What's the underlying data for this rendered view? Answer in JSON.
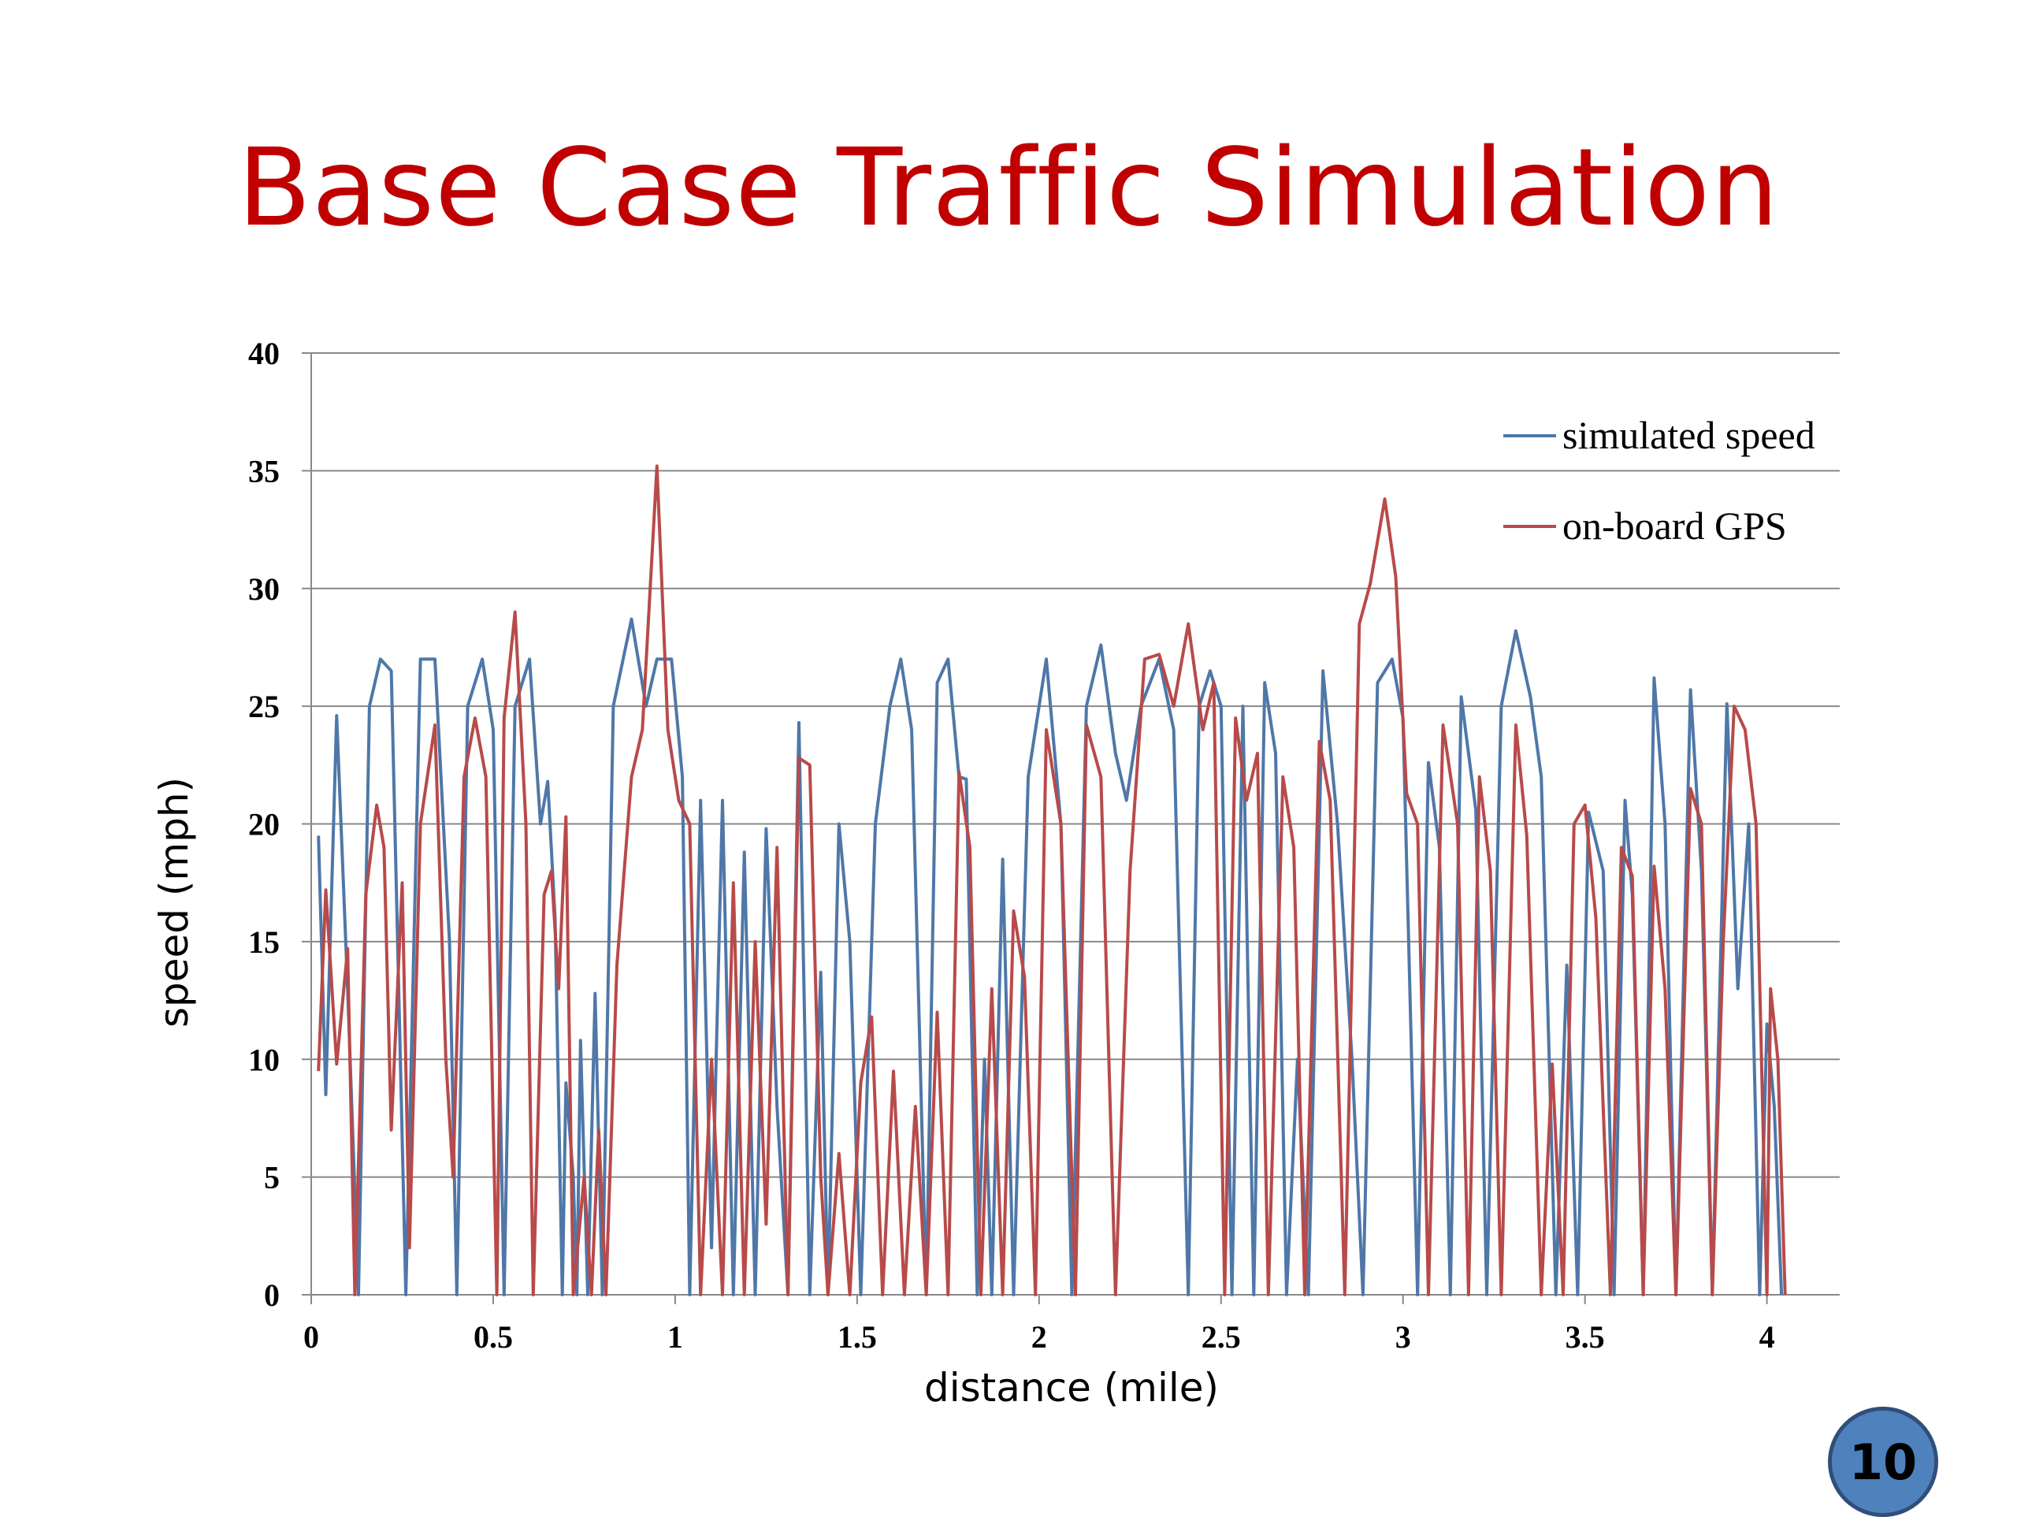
{
  "slide": {
    "title": "Base Case Traffic Simulation",
    "page_number": "10"
  },
  "colors": {
    "title": "#c00000",
    "simulated": "#4f77a8",
    "gps": "#b84a4a",
    "grid": "#888888",
    "badge": "#4f81bd"
  },
  "chart_data": {
    "type": "line",
    "xlabel": "distance (mile)",
    "ylabel": "speed (mph)",
    "xlim": [
      0,
      4.2
    ],
    "ylim": [
      0,
      40
    ],
    "x_ticks": [
      "0",
      "0.5",
      "1",
      "1.5",
      "2",
      "2.5",
      "3",
      "3.5",
      "4"
    ],
    "y_ticks": [
      "0",
      "5",
      "10",
      "15",
      "20",
      "25",
      "30",
      "35",
      "40"
    ],
    "grid": "horizontal",
    "legend_position": "top-right",
    "series": [
      {
        "name": "simulated speed",
        "color": "#4f77a8",
        "points": [
          [
            0.02,
            19.5
          ],
          [
            0.04,
            8.5
          ],
          [
            0.07,
            24.6
          ],
          [
            0.1,
            13
          ],
          [
            0.13,
            0
          ],
          [
            0.16,
            25
          ],
          [
            0.19,
            27
          ],
          [
            0.22,
            26.5
          ],
          [
            0.26,
            0
          ],
          [
            0.3,
            27
          ],
          [
            0.34,
            27
          ],
          [
            0.38,
            15
          ],
          [
            0.4,
            0
          ],
          [
            0.43,
            25
          ],
          [
            0.47,
            27
          ],
          [
            0.5,
            24
          ],
          [
            0.53,
            0
          ],
          [
            0.56,
            25
          ],
          [
            0.6,
            27
          ],
          [
            0.63,
            20
          ],
          [
            0.65,
            21.8
          ],
          [
            0.67,
            16
          ],
          [
            0.69,
            0
          ],
          [
            0.7,
            9
          ],
          [
            0.72,
            5
          ],
          [
            0.73,
            0
          ],
          [
            0.74,
            10.8
          ],
          [
            0.76,
            0
          ],
          [
            0.78,
            12.8
          ],
          [
            0.8,
            0
          ],
          [
            0.83,
            25
          ],
          [
            0.88,
            28.7
          ],
          [
            0.92,
            25
          ],
          [
            0.95,
            27
          ],
          [
            0.99,
            27
          ],
          [
            1.02,
            22
          ],
          [
            1.04,
            0
          ],
          [
            1.07,
            21
          ],
          [
            1.1,
            2
          ],
          [
            1.13,
            21
          ],
          [
            1.16,
            0
          ],
          [
            1.19,
            18.8
          ],
          [
            1.22,
            0
          ],
          [
            1.25,
            19.8
          ],
          [
            1.28,
            8
          ],
          [
            1.31,
            0
          ],
          [
            1.34,
            24.3
          ],
          [
            1.37,
            0
          ],
          [
            1.4,
            13.7
          ],
          [
            1.42,
            0
          ],
          [
            1.45,
            20
          ],
          [
            1.48,
            15
          ],
          [
            1.51,
            0
          ],
          [
            1.55,
            20
          ],
          [
            1.59,
            25
          ],
          [
            1.62,
            27
          ],
          [
            1.65,
            24
          ],
          [
            1.69,
            0
          ],
          [
            1.72,
            26
          ],
          [
            1.75,
            27
          ],
          [
            1.78,
            22
          ],
          [
            1.8,
            21.9
          ],
          [
            1.83,
            0
          ],
          [
            1.85,
            10
          ],
          [
            1.87,
            0
          ],
          [
            1.9,
            18.5
          ],
          [
            1.93,
            0
          ],
          [
            1.97,
            22
          ],
          [
            2.02,
            27
          ],
          [
            2.06,
            20
          ],
          [
            2.09,
            0
          ],
          [
            2.13,
            25
          ],
          [
            2.17,
            27.6
          ],
          [
            2.21,
            23
          ],
          [
            2.24,
            21
          ],
          [
            2.28,
            25
          ],
          [
            2.33,
            27
          ],
          [
            2.37,
            24
          ],
          [
            2.41,
            0
          ],
          [
            2.44,
            25
          ],
          [
            2.47,
            26.5
          ],
          [
            2.5,
            25
          ],
          [
            2.53,
            0
          ],
          [
            2.56,
            25
          ],
          [
            2.59,
            0
          ],
          [
            2.62,
            26
          ],
          [
            2.65,
            23
          ],
          [
            2.68,
            0
          ],
          [
            2.71,
            10
          ],
          [
            2.74,
            0
          ],
          [
            2.78,
            26.5
          ],
          [
            2.82,
            20
          ],
          [
            2.86,
            10
          ],
          [
            2.89,
            0
          ],
          [
            2.93,
            26
          ],
          [
            2.97,
            27
          ],
          [
            3.0,
            24.5
          ],
          [
            3.04,
            0
          ],
          [
            3.07,
            22.6
          ],
          [
            3.1,
            19
          ],
          [
            3.13,
            0
          ],
          [
            3.16,
            25.4
          ],
          [
            3.2,
            20.6
          ],
          [
            3.23,
            0
          ],
          [
            3.27,
            25
          ],
          [
            3.31,
            28.2
          ],
          [
            3.35,
            25.4
          ],
          [
            3.38,
            22
          ],
          [
            3.42,
            0
          ],
          [
            3.45,
            14
          ],
          [
            3.48,
            0
          ],
          [
            3.51,
            20.5
          ],
          [
            3.55,
            18
          ],
          [
            3.58,
            0
          ],
          [
            3.61,
            21
          ],
          [
            3.63,
            17
          ],
          [
            3.66,
            0
          ],
          [
            3.69,
            26.2
          ],
          [
            3.72,
            20
          ],
          [
            3.75,
            0
          ],
          [
            3.79,
            25.7
          ],
          [
            3.82,
            18
          ],
          [
            3.85,
            0
          ],
          [
            3.89,
            25.1
          ],
          [
            3.92,
            13
          ],
          [
            3.95,
            20
          ],
          [
            3.98,
            0
          ],
          [
            4.0,
            11.5
          ],
          [
            4.02,
            8
          ],
          [
            4.04,
            0
          ]
        ]
      },
      {
        "name": "on-board GPS",
        "color": "#b84a4a",
        "points": [
          [
            0.02,
            9.5
          ],
          [
            0.04,
            17.2
          ],
          [
            0.07,
            9.8
          ],
          [
            0.1,
            14.7
          ],
          [
            0.12,
            0
          ],
          [
            0.15,
            17
          ],
          [
            0.18,
            20.8
          ],
          [
            0.2,
            19
          ],
          [
            0.22,
            7
          ],
          [
            0.25,
            17.5
          ],
          [
            0.27,
            2
          ],
          [
            0.3,
            20
          ],
          [
            0.34,
            24.2
          ],
          [
            0.37,
            10
          ],
          [
            0.39,
            5
          ],
          [
            0.42,
            22
          ],
          [
            0.45,
            24.5
          ],
          [
            0.48,
            22
          ],
          [
            0.51,
            0
          ],
          [
            0.53,
            24.5
          ],
          [
            0.56,
            29
          ],
          [
            0.59,
            20
          ],
          [
            0.61,
            0
          ],
          [
            0.64,
            17
          ],
          [
            0.66,
            18
          ],
          [
            0.68,
            13
          ],
          [
            0.7,
            20.3
          ],
          [
            0.72,
            0
          ],
          [
            0.75,
            5
          ],
          [
            0.77,
            0
          ],
          [
            0.79,
            7
          ],
          [
            0.81,
            0
          ],
          [
            0.84,
            14
          ],
          [
            0.88,
            22
          ],
          [
            0.91,
            24
          ],
          [
            0.95,
            35.2
          ],
          [
            0.98,
            24
          ],
          [
            1.01,
            21
          ],
          [
            1.04,
            20
          ],
          [
            1.07,
            0
          ],
          [
            1.1,
            10
          ],
          [
            1.13,
            0
          ],
          [
            1.16,
            17.5
          ],
          [
            1.19,
            0
          ],
          [
            1.22,
            15
          ],
          [
            1.25,
            3
          ],
          [
            1.28,
            19
          ],
          [
            1.31,
            0
          ],
          [
            1.34,
            22.8
          ],
          [
            1.37,
            22.5
          ],
          [
            1.4,
            5
          ],
          [
            1.42,
            0
          ],
          [
            1.45,
            6
          ],
          [
            1.48,
            0
          ],
          [
            1.51,
            9
          ],
          [
            1.54,
            11.8
          ],
          [
            1.57,
            0
          ],
          [
            1.6,
            9.5
          ],
          [
            1.63,
            0
          ],
          [
            1.66,
            8
          ],
          [
            1.69,
            0
          ],
          [
            1.72,
            12
          ],
          [
            1.75,
            0
          ],
          [
            1.78,
            22.2
          ],
          [
            1.81,
            19
          ],
          [
            1.84,
            0
          ],
          [
            1.87,
            13
          ],
          [
            1.9,
            0
          ],
          [
            1.93,
            16.3
          ],
          [
            1.96,
            13.5
          ],
          [
            1.99,
            0
          ],
          [
            2.02,
            24
          ],
          [
            2.06,
            20
          ],
          [
            2.1,
            0
          ],
          [
            2.13,
            24.2
          ],
          [
            2.17,
            22
          ],
          [
            2.21,
            0
          ],
          [
            2.25,
            18
          ],
          [
            2.29,
            27
          ],
          [
            2.33,
            27.2
          ],
          [
            2.37,
            25
          ],
          [
            2.41,
            28.5
          ],
          [
            2.45,
            24
          ],
          [
            2.48,
            26
          ],
          [
            2.51,
            0
          ],
          [
            2.54,
            24.5
          ],
          [
            2.57,
            21
          ],
          [
            2.6,
            23
          ],
          [
            2.63,
            0
          ],
          [
            2.67,
            22
          ],
          [
            2.7,
            19
          ],
          [
            2.73,
            0
          ],
          [
            2.77,
            23.5
          ],
          [
            2.8,
            21
          ],
          [
            2.84,
            0
          ],
          [
            2.88,
            28.5
          ],
          [
            2.91,
            30.2
          ],
          [
            2.95,
            33.8
          ],
          [
            2.98,
            30.5
          ],
          [
            3.01,
            21.3
          ],
          [
            3.04,
            20
          ],
          [
            3.07,
            0
          ],
          [
            3.11,
            24.2
          ],
          [
            3.15,
            20
          ],
          [
            3.18,
            0
          ],
          [
            3.21,
            22
          ],
          [
            3.24,
            18
          ],
          [
            3.27,
            0
          ],
          [
            3.31,
            24.2
          ],
          [
            3.34,
            19.5
          ],
          [
            3.38,
            0
          ],
          [
            3.41,
            9.8
          ],
          [
            3.44,
            0
          ],
          [
            3.47,
            20
          ],
          [
            3.5,
            20.8
          ],
          [
            3.53,
            16
          ],
          [
            3.57,
            0
          ],
          [
            3.6,
            19
          ],
          [
            3.63,
            17.8
          ],
          [
            3.66,
            0
          ],
          [
            3.69,
            18.2
          ],
          [
            3.72,
            13
          ],
          [
            3.75,
            0
          ],
          [
            3.79,
            21.5
          ],
          [
            3.82,
            20
          ],
          [
            3.85,
            0
          ],
          [
            3.88,
            15
          ],
          [
            3.91,
            25
          ],
          [
            3.94,
            24
          ],
          [
            3.97,
            20
          ],
          [
            4.0,
            0
          ],
          [
            4.01,
            13
          ],
          [
            4.03,
            10
          ],
          [
            4.05,
            0
          ]
        ]
      }
    ]
  }
}
